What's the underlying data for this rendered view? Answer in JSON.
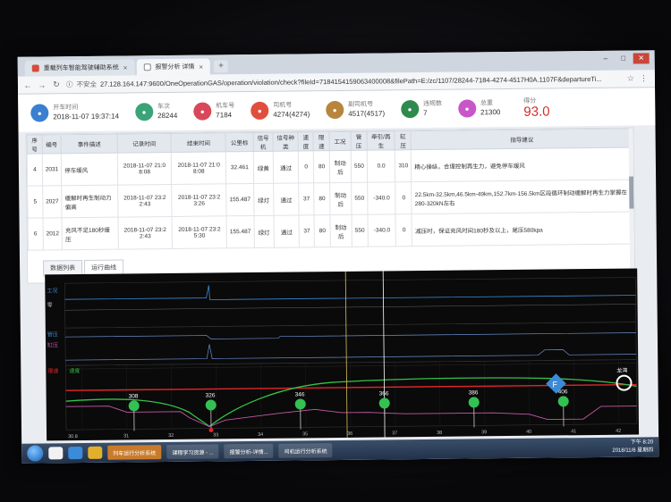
{
  "browser": {
    "tabs": [
      {
        "label": "重载列车智能驾驶辅助系统"
      },
      {
        "label": "报警分析 详情"
      }
    ],
    "url_security": "不安全",
    "url": "27.128.164.147:9600/OneOperationGAS/operation/violation/check?fileId=7184154159063400008&filePath=E:/zc/1107/28244-7184-4274-4517H0A.1107F&departureTi..."
  },
  "summary": {
    "items": [
      {
        "label": "开车时间",
        "value": "2018-11-07 19:37:14",
        "color": "#3b7fd1",
        "icon": "clock-icon"
      },
      {
        "label": "车次",
        "value": "28244",
        "color": "#3aa37a",
        "icon": "train-icon"
      },
      {
        "label": "机车号",
        "value": "7184",
        "color": "#d9475b",
        "icon": "locomotive-icon"
      },
      {
        "label": "司机号",
        "value": "4274(4274)",
        "color": "#e24e3e",
        "icon": "driver-icon"
      },
      {
        "label": "副司机号",
        "value": "4517(4517)",
        "color": "#b7853c",
        "icon": "assistant-icon"
      },
      {
        "label": "违规数",
        "value": "7",
        "color": "#2f8a4e",
        "icon": "violation-icon"
      },
      {
        "label": "总重",
        "value": "21300",
        "color": "#c856c8",
        "icon": "weight-icon"
      }
    ],
    "score_label": "得分",
    "score_value": "93.0"
  },
  "table": {
    "headers": [
      "序号",
      "编号",
      "事件描述",
      "记录时间",
      "结束时间",
      "公里标",
      "信号机",
      "信号种类",
      "速度",
      "限速",
      "工况",
      "管压",
      "牵引/再生",
      "缸压",
      "指导建议"
    ],
    "rows": [
      [
        "4",
        "2031",
        "停车缓风",
        "2018-11-07 21:0 8:08",
        "2018-11-07 21:0 8:08",
        "32.461",
        "绿黄",
        "通过",
        "0",
        "80",
        "制动后",
        "550",
        "0.0",
        "310",
        "精心操纵，合理控制再生力，避免停车缓风"
      ],
      [
        "5",
        "2027",
        "缓解时再生制动力偏高",
        "2018-11-07 23:2 2:43",
        "2018-11-07 23:2 3:26",
        "155.487",
        "绿灯",
        "通过",
        "37",
        "80",
        "制动后",
        "550",
        "-340.0",
        "0",
        "22.5km-32.5km,46.5km-49km,152.7km-156.5km区段循环制动缓解时再生力掌握在280-320kN左右"
      ],
      [
        "6",
        "2012",
        "充风不足180秒缓压",
        "2018-11-07 23:2 2:43",
        "2018-11-07 23:2 5:30",
        "155.487",
        "绿灯",
        "通过",
        "37",
        "80",
        "制动后",
        "550",
        "-340.0",
        "0",
        "减压时，保证充风时间180秒及以上，尾压580kpa"
      ]
    ]
  },
  "view_tabs": [
    "数据列表",
    "运行曲线"
  ],
  "chart": {
    "row_labels": [
      "工况",
      "零",
      "管压",
      "缸压",
      "速度",
      "限速"
    ],
    "markers": [
      "308",
      "326",
      "346",
      "366",
      "386",
      "406"
    ],
    "special_markers": [
      {
        "label": "F",
        "color": "#3c8bd6"
      },
      {
        "label": "龙湾",
        "color": "#ffffff"
      }
    ],
    "x_ticks": [
      "30.8",
      "31",
      "32",
      "33",
      "34",
      "35",
      "36",
      "37",
      "38",
      "39",
      "40",
      "41",
      "42"
    ],
    "colors": {
      "limit_line": "#e0262a",
      "speed_line": "#36c24a",
      "pressure_line": "#c45aa8",
      "signal_marker": "#33c152",
      "cursor": "#ffffff",
      "cursor_yellow": "#d9c15a"
    }
  },
  "taskbar": {
    "tasks": [
      "列车运行分析系统",
      "课程学习资源 - ...",
      "报警分析-详情...",
      "司机运行分析系统"
    ],
    "time": "下午 8:20",
    "date": "2018/11/8 星期四"
  }
}
